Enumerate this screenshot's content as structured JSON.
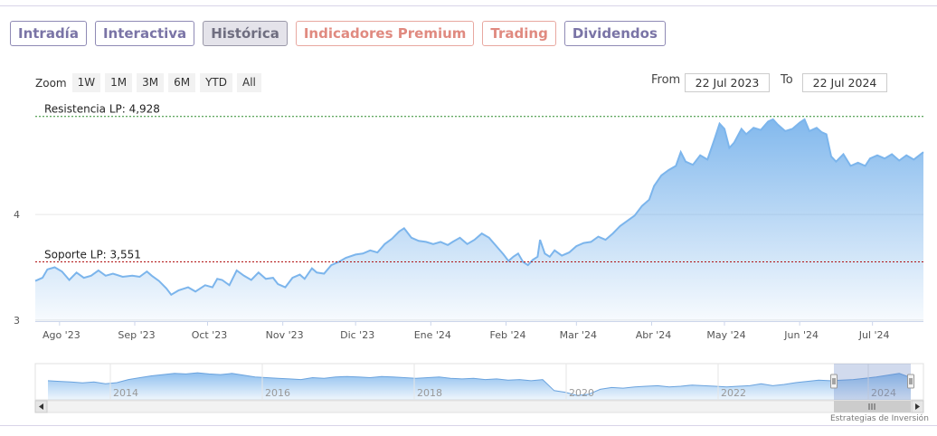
{
  "tabs": [
    {
      "label": "Intradía",
      "state": "normal"
    },
    {
      "label": "Interactiva",
      "state": "normal"
    },
    {
      "label": "Histórica",
      "state": "active"
    },
    {
      "label": "Indicadores Premium",
      "state": "premium"
    },
    {
      "label": "Trading",
      "state": "premium"
    },
    {
      "label": "Dividendos",
      "state": "normal"
    }
  ],
  "zoom": {
    "label": "Zoom",
    "buttons": [
      "1W",
      "1M",
      "3M",
      "6M",
      "YTD",
      "All"
    ]
  },
  "range": {
    "from_label": "From",
    "from_value": "22 Jul 2023",
    "to_label": "To",
    "to_value": "22 Jul 2024"
  },
  "credit": "Estrategias de Inversión",
  "chart_data": {
    "type": "area",
    "title": "",
    "xlabel": "",
    "ylabel": "",
    "ylim": [
      2.99,
      5.02
    ],
    "y_ticks": [
      3,
      4
    ],
    "x_ticks": [
      "Ago '23",
      "Sep '23",
      "Oct '23",
      "Nov '23",
      "Dic '23",
      "Ene '24",
      "Feb '24",
      "Mar '24",
      "Abr '24",
      "May '24",
      "Jun '24",
      "Jul '24"
    ],
    "x_ticks_dates": [
      "2023-08-01",
      "2023-09-01",
      "2023-10-01",
      "2023-11-01",
      "2023-12-01",
      "2024-01-01",
      "2024-02-01",
      "2024-03-01",
      "2024-04-01",
      "2024-05-01",
      "2024-06-01",
      "2024-07-01"
    ],
    "x_range": [
      "2023-07-22",
      "2024-07-22"
    ],
    "series": [
      {
        "color": "#7cb5ec",
        "points": [
          [
            "2023-07-22",
            3.37
          ],
          [
            "2023-07-25",
            3.4
          ],
          [
            "2023-07-27",
            3.48
          ],
          [
            "2023-07-30",
            3.5
          ],
          [
            "2023-08-02",
            3.46
          ],
          [
            "2023-08-05",
            3.38
          ],
          [
            "2023-08-08",
            3.45
          ],
          [
            "2023-08-11",
            3.4
          ],
          [
            "2023-08-14",
            3.42
          ],
          [
            "2023-08-17",
            3.47
          ],
          [
            "2023-08-20",
            3.42
          ],
          [
            "2023-08-23",
            3.44
          ],
          [
            "2023-08-27",
            3.41
          ],
          [
            "2023-08-31",
            3.42
          ],
          [
            "2023-09-03",
            3.41
          ],
          [
            "2023-09-06",
            3.46
          ],
          [
            "2023-09-08",
            3.42
          ],
          [
            "2023-09-11",
            3.37
          ],
          [
            "2023-09-14",
            3.3
          ],
          [
            "2023-09-16",
            3.24
          ],
          [
            "2023-09-19",
            3.28
          ],
          [
            "2023-09-23",
            3.31
          ],
          [
            "2023-09-26",
            3.27
          ],
          [
            "2023-09-30",
            3.33
          ],
          [
            "2023-10-03",
            3.31
          ],
          [
            "2023-10-05",
            3.39
          ],
          [
            "2023-10-07",
            3.38
          ],
          [
            "2023-10-10",
            3.33
          ],
          [
            "2023-10-13",
            3.47
          ],
          [
            "2023-10-16",
            3.42
          ],
          [
            "2023-10-19",
            3.38
          ],
          [
            "2023-10-22",
            3.45
          ],
          [
            "2023-10-25",
            3.39
          ],
          [
            "2023-10-28",
            3.4
          ],
          [
            "2023-10-30",
            3.34
          ],
          [
            "2023-11-02",
            3.31
          ],
          [
            "2023-11-05",
            3.4
          ],
          [
            "2023-11-08",
            3.43
          ],
          [
            "2023-11-10",
            3.39
          ],
          [
            "2023-11-13",
            3.49
          ],
          [
            "2023-11-15",
            3.45
          ],
          [
            "2023-11-18",
            3.44
          ],
          [
            "2023-11-21",
            3.52
          ],
          [
            "2023-11-24",
            3.55
          ],
          [
            "2023-11-27",
            3.59
          ],
          [
            "2023-12-01",
            3.62
          ],
          [
            "2023-12-04",
            3.63
          ],
          [
            "2023-12-07",
            3.66
          ],
          [
            "2023-12-10",
            3.64
          ],
          [
            "2023-12-13",
            3.72
          ],
          [
            "2023-12-16",
            3.77
          ],
          [
            "2023-12-19",
            3.84
          ],
          [
            "2023-12-21",
            3.87
          ],
          [
            "2023-12-24",
            3.78
          ],
          [
            "2023-12-27",
            3.75
          ],
          [
            "2023-12-30",
            3.74
          ],
          [
            "2024-01-02",
            3.72
          ],
          [
            "2024-01-05",
            3.74
          ],
          [
            "2024-01-08",
            3.71
          ],
          [
            "2024-01-10",
            3.74
          ],
          [
            "2024-01-13",
            3.78
          ],
          [
            "2024-01-16",
            3.72
          ],
          [
            "2024-01-19",
            3.76
          ],
          [
            "2024-01-22",
            3.82
          ],
          [
            "2024-01-25",
            3.78
          ],
          [
            "2024-01-28",
            3.7
          ],
          [
            "2024-01-31",
            3.62
          ],
          [
            "2024-02-02",
            3.56
          ],
          [
            "2024-02-04",
            3.6
          ],
          [
            "2024-02-06",
            3.63
          ],
          [
            "2024-02-08",
            3.55
          ],
          [
            "2024-02-10",
            3.52
          ],
          [
            "2024-02-12",
            3.57
          ],
          [
            "2024-02-14",
            3.6
          ],
          [
            "2024-02-15",
            3.76
          ],
          [
            "2024-02-17",
            3.63
          ],
          [
            "2024-02-19",
            3.6
          ],
          [
            "2024-02-21",
            3.66
          ],
          [
            "2024-02-24",
            3.61
          ],
          [
            "2024-02-27",
            3.64
          ],
          [
            "2024-03-01",
            3.7
          ],
          [
            "2024-03-04",
            3.73
          ],
          [
            "2024-03-07",
            3.74
          ],
          [
            "2024-03-10",
            3.79
          ],
          [
            "2024-03-13",
            3.76
          ],
          [
            "2024-03-16",
            3.82
          ],
          [
            "2024-03-19",
            3.89
          ],
          [
            "2024-03-22",
            3.94
          ],
          [
            "2024-03-25",
            3.99
          ],
          [
            "2024-03-28",
            4.08
          ],
          [
            "2024-03-31",
            4.14
          ],
          [
            "2024-04-02",
            4.27
          ],
          [
            "2024-04-05",
            4.37
          ],
          [
            "2024-04-08",
            4.42
          ],
          [
            "2024-04-11",
            4.46
          ],
          [
            "2024-04-13",
            4.59
          ],
          [
            "2024-04-15",
            4.5
          ],
          [
            "2024-04-18",
            4.47
          ],
          [
            "2024-04-21",
            4.56
          ],
          [
            "2024-04-24",
            4.52
          ],
          [
            "2024-04-27",
            4.72
          ],
          [
            "2024-04-29",
            4.86
          ],
          [
            "2024-05-01",
            4.81
          ],
          [
            "2024-05-03",
            4.63
          ],
          [
            "2024-05-05",
            4.68
          ],
          [
            "2024-05-08",
            4.81
          ],
          [
            "2024-05-10",
            4.76
          ],
          [
            "2024-05-13",
            4.82
          ],
          [
            "2024-05-16",
            4.8
          ],
          [
            "2024-05-19",
            4.88
          ],
          [
            "2024-05-21",
            4.9
          ],
          [
            "2024-05-23",
            4.85
          ],
          [
            "2024-05-26",
            4.79
          ],
          [
            "2024-05-29",
            4.81
          ],
          [
            "2024-06-01",
            4.87
          ],
          [
            "2024-06-03",
            4.9
          ],
          [
            "2024-06-05",
            4.79
          ],
          [
            "2024-06-08",
            4.82
          ],
          [
            "2024-06-10",
            4.78
          ],
          [
            "2024-06-12",
            4.76
          ],
          [
            "2024-06-14",
            4.55
          ],
          [
            "2024-06-16",
            4.5
          ],
          [
            "2024-06-19",
            4.57
          ],
          [
            "2024-06-22",
            4.46
          ],
          [
            "2024-06-25",
            4.49
          ],
          [
            "2024-06-28",
            4.46
          ],
          [
            "2024-06-30",
            4.53
          ],
          [
            "2024-07-03",
            4.56
          ],
          [
            "2024-07-06",
            4.53
          ],
          [
            "2024-07-09",
            4.57
          ],
          [
            "2024-07-12",
            4.51
          ],
          [
            "2024-07-15",
            4.56
          ],
          [
            "2024-07-18",
            4.52
          ],
          [
            "2024-07-22",
            4.59
          ]
        ]
      }
    ],
    "reference_lines": [
      {
        "label": "Resistencia LP: 4,928",
        "value": 4.928,
        "color": "#2e8b2e"
      },
      {
        "label": "Soporte LP: 3,551",
        "value": 3.551,
        "color": "#b01010"
      }
    ],
    "navigator": {
      "x_ticks": [
        "2014",
        "2016",
        "2018",
        "2020",
        "2022",
        "2024"
      ],
      "profile": [
        0.62,
        0.6,
        0.58,
        0.55,
        0.58,
        0.52,
        0.56,
        0.66,
        0.72,
        0.78,
        0.82,
        0.86,
        0.84,
        0.88,
        0.84,
        0.82,
        0.86,
        0.8,
        0.74,
        0.72,
        0.7,
        0.68,
        0.66,
        0.72,
        0.7,
        0.74,
        0.76,
        0.74,
        0.72,
        0.76,
        0.74,
        0.72,
        0.7,
        0.72,
        0.74,
        0.7,
        0.68,
        0.7,
        0.66,
        0.68,
        0.64,
        0.66,
        0.62,
        0.66,
        0.3,
        0.24,
        0.14,
        0.18,
        0.34,
        0.4,
        0.38,
        0.42,
        0.44,
        0.46,
        0.42,
        0.44,
        0.48,
        0.46,
        0.44,
        0.42,
        0.44,
        0.46,
        0.52,
        0.46,
        0.5,
        0.56,
        0.6,
        0.64,
        0.62,
        0.64,
        0.66,
        0.7,
        0.74,
        0.8,
        0.86,
        0.72
      ]
    }
  }
}
